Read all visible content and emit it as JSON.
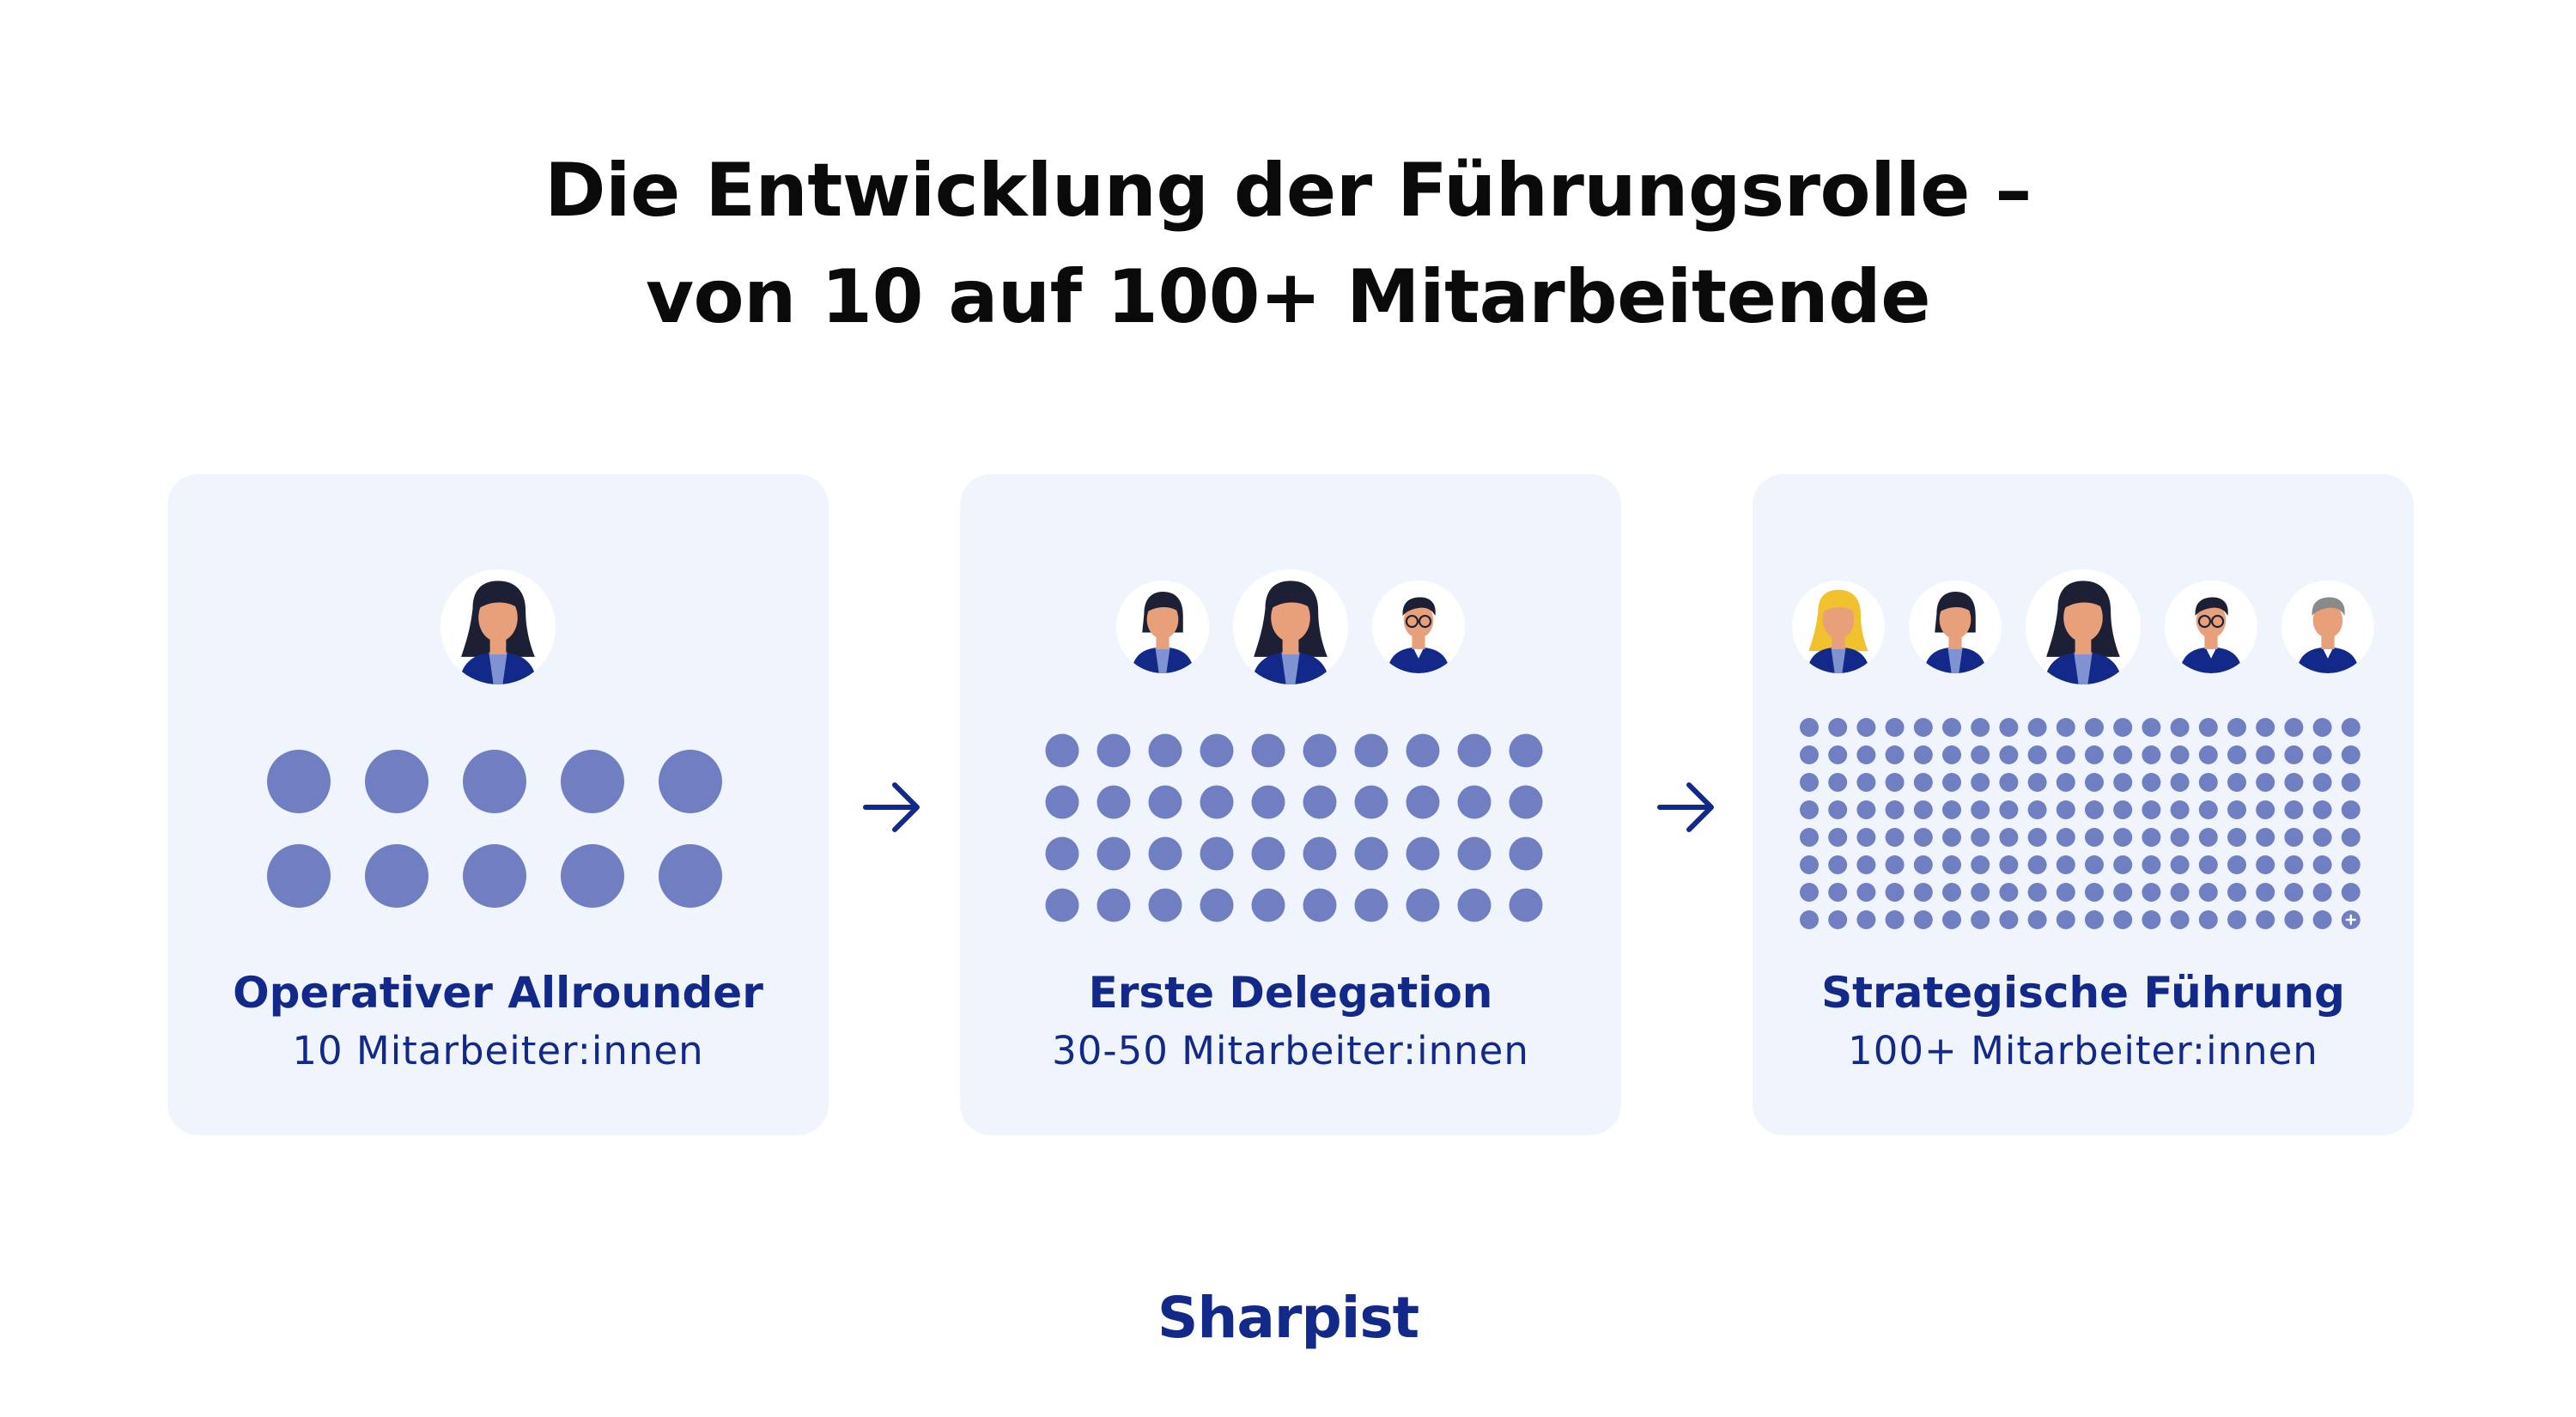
{
  "title": {
    "line1": "Die Entwicklung der Führungsrolle –",
    "line2": "von 10 auf 100+ Mitarbeitende"
  },
  "colors": {
    "dot": "#6f7fc2",
    "card_bg": "#f0f5fd",
    "brand": "#13298a",
    "skin": "#e8a07a",
    "hair": "#1d2035",
    "blonde_hair": "#f2c12e",
    "suit": "#13298a",
    "shirt": "#7f92d2"
  },
  "stages": [
    {
      "label": "Operativer Allrounder",
      "sublabel": "10 Mitarbeiter:innen",
      "dot_cols": 5,
      "dot_rows": 2,
      "employees": 10,
      "leaders": [
        "woman-dark"
      ]
    },
    {
      "label": "Erste Delegation",
      "sublabel": "30-50 Mitarbeiter:innen",
      "dot_cols": 10,
      "dot_rows": 4,
      "employees": 40,
      "leaders": [
        "woman-bob",
        "woman-dark",
        "man-glasses"
      ]
    },
    {
      "label": "Strategische Führung",
      "sublabel": "100+ Mitarbeiter:innen",
      "dot_cols": 20,
      "dot_rows": 8,
      "employees": 160,
      "has_plus_marker": true,
      "leaders": [
        "woman-blonde",
        "woman-bob",
        "woman-dark",
        "man-glasses",
        "man-gray"
      ]
    }
  ],
  "arrows": [
    "arrow-right-icon",
    "arrow-right-icon"
  ],
  "brand": {
    "name": "Sharpist"
  }
}
